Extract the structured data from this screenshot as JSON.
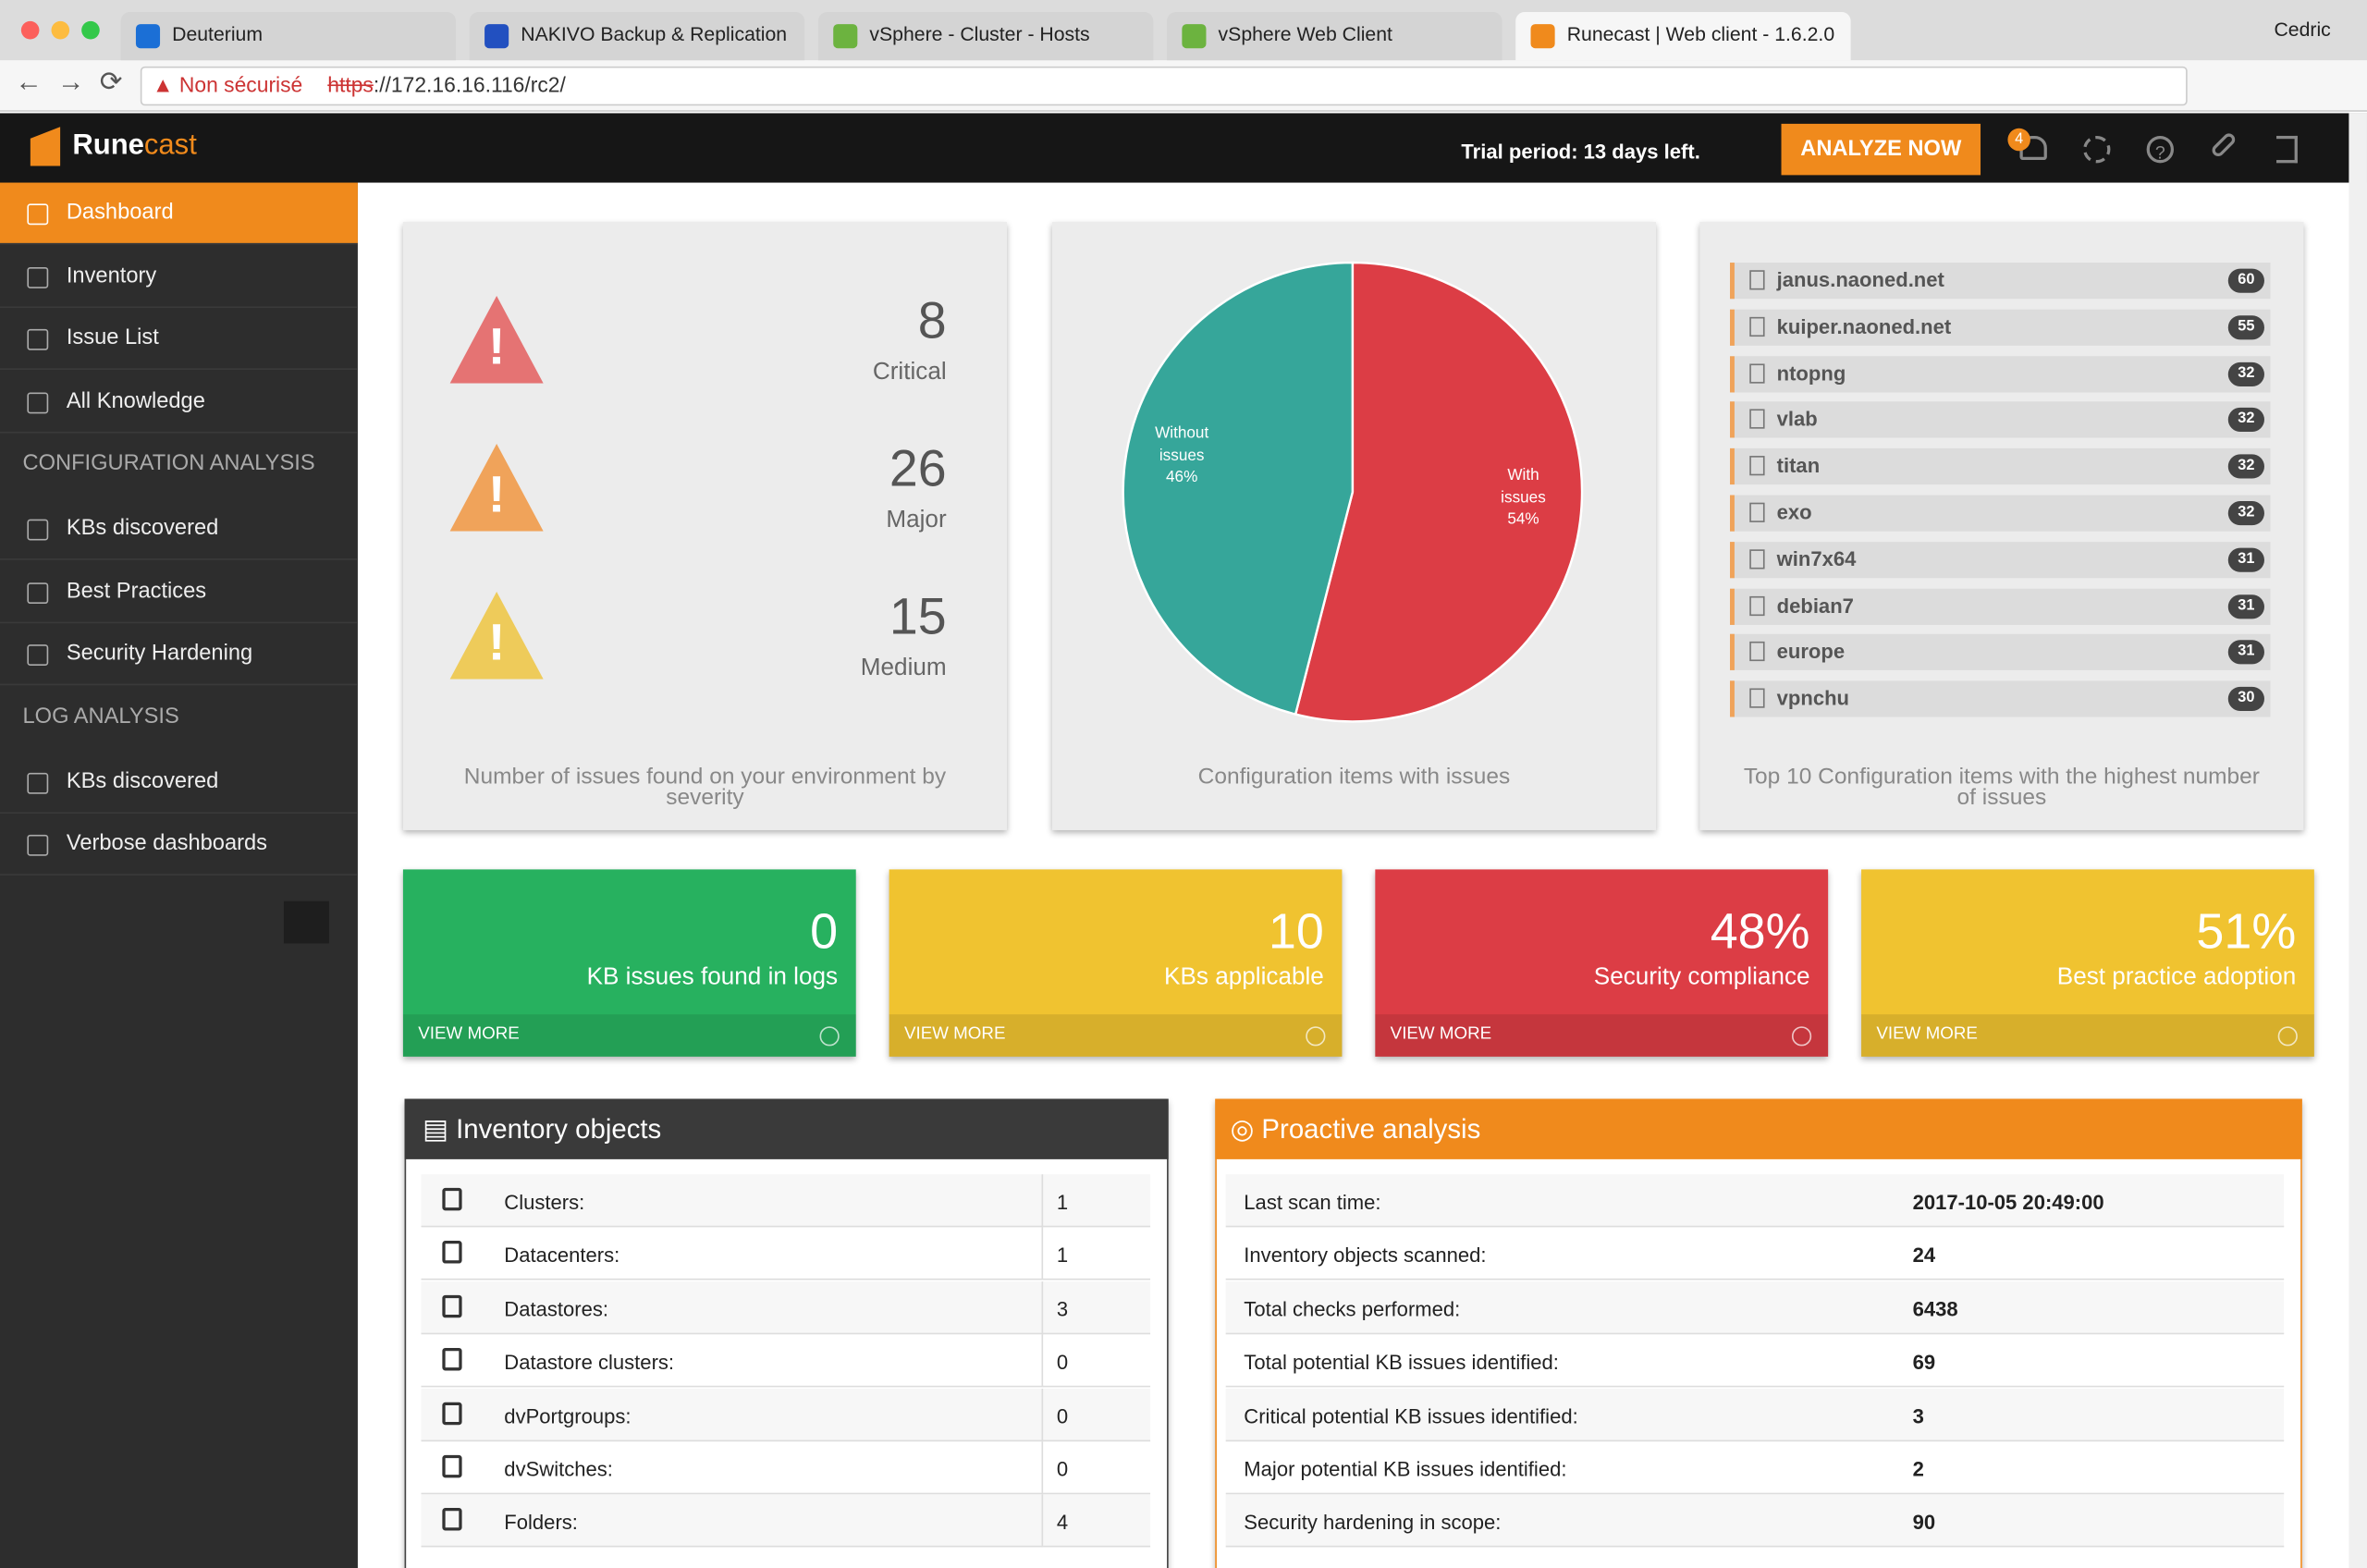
{
  "browser": {
    "tabs": [
      "Deuterium",
      "NAKIVO Backup & Replication",
      "vSphere - Cluster - Hosts",
      "vSphere Web Client",
      "Runecast | Web client - 1.6.2.0"
    ],
    "user": "Cedric",
    "security": "Non sécurisé",
    "url_scheme": "https",
    "url_rest": "://172.16.16.116/rc2/"
  },
  "header": {
    "brand_a": "Rune",
    "brand_b": "cast",
    "trial": "Trial period: 13 days left.",
    "button": "ANALYZE NOW",
    "notifications": "4"
  },
  "sidebar": {
    "items": [
      {
        "label": "Dashboard",
        "active": true
      },
      {
        "label": "Inventory"
      },
      {
        "label": "Issue List"
      },
      {
        "label": "All Knowledge"
      },
      {
        "section": "CONFIGURATION ANALYSIS"
      },
      {
        "label": "KBs discovered"
      },
      {
        "label": "Best Practices"
      },
      {
        "label": "Security Hardening"
      },
      {
        "section": "LOG ANALYSIS"
      },
      {
        "label": "KBs discovered"
      },
      {
        "label": "Verbose dashboards"
      }
    ]
  },
  "severity": {
    "items": [
      {
        "count": 8,
        "label": "Critical",
        "color": "#e57373"
      },
      {
        "count": 26,
        "label": "Major",
        "color": "#f0a35a"
      },
      {
        "count": 15,
        "label": "Medium",
        "color": "#eecb5a"
      }
    ],
    "caption": "Number of issues found on your environment by severity"
  },
  "pie": {
    "title": "Configuration items with issues",
    "slices": [
      {
        "label": "With issues",
        "value": 54,
        "value_label": "54%",
        "color": "#dc3d45"
      },
      {
        "label": "Without issues",
        "value": 46,
        "value_label": "46%",
        "color": "#36a69a"
      }
    ]
  },
  "top10": {
    "items": [
      {
        "name": "janus.naoned.net",
        "count": 60
      },
      {
        "name": "kuiper.naoned.net",
        "count": 55
      },
      {
        "name": "ntopng",
        "count": 32
      },
      {
        "name": "vlab",
        "count": 32
      },
      {
        "name": "titan",
        "count": 32
      },
      {
        "name": "exo",
        "count": 32
      },
      {
        "name": "win7x64",
        "count": 31
      },
      {
        "name": "debian7",
        "count": 31
      },
      {
        "name": "europe",
        "count": 31
      },
      {
        "name": "vpnchu",
        "count": 30
      }
    ],
    "caption": "Top 10 Configuration items with the highest number of issues"
  },
  "tiles": [
    {
      "value": "0",
      "label": "KB issues found in logs",
      "link": "VIEW MORE",
      "color": "#27b15f"
    },
    {
      "value": "10",
      "label": "KBs applicable",
      "link": "VIEW MORE",
      "color": "#f0c330"
    },
    {
      "value": "48%",
      "label": "Security compliance",
      "link": "VIEW MORE",
      "color": "#dc3d45"
    },
    {
      "value": "51%",
      "label": "Best practice adoption",
      "link": "VIEW MORE",
      "color": "#f0c330"
    }
  ],
  "inventory": {
    "title": "Inventory objects",
    "rows": [
      [
        "Clusters:",
        "1"
      ],
      [
        "Datacenters:",
        "1"
      ],
      [
        "Datastores:",
        "3"
      ],
      [
        "Datastore clusters:",
        "0"
      ],
      [
        "dvPortgroups:",
        "0"
      ],
      [
        "dvSwitches:",
        "0"
      ],
      [
        "Folders:",
        "4"
      ]
    ]
  },
  "proactive": {
    "title": "Proactive analysis",
    "rows": [
      [
        "Last scan time:",
        "2017-10-05 20:49:00"
      ],
      [
        "Inventory objects scanned:",
        "24"
      ],
      [
        "Total checks performed:",
        "6438"
      ],
      [
        "Total potential KB issues identified:",
        "69"
      ],
      [
        "Critical potential KB issues identified:",
        "3"
      ],
      [
        "Major potential KB issues identified:",
        "2"
      ],
      [
        "Security hardening in scope:",
        "90"
      ]
    ]
  }
}
